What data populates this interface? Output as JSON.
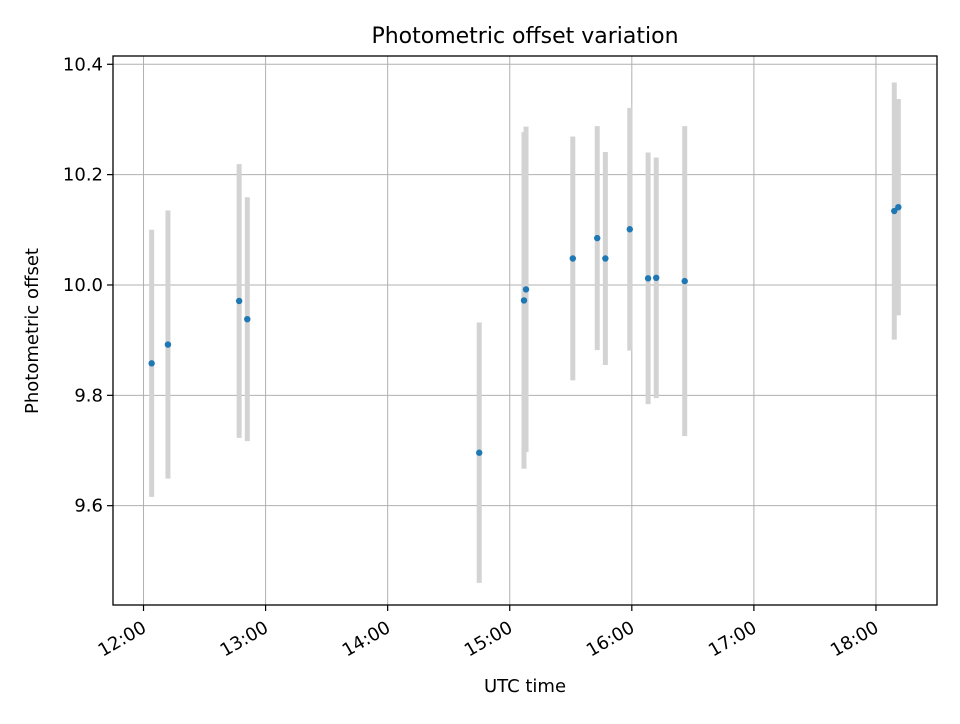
{
  "chart_data": {
    "type": "scatter",
    "title": "Photometric offset variation",
    "xlabel": "UTC time",
    "ylabel": "Photometric offset",
    "x_ticks": [
      "12:00",
      "13:00",
      "14:00",
      "15:00",
      "16:00",
      "17:00",
      "18:00"
    ],
    "x_tick_hours": [
      12,
      13,
      14,
      15,
      16,
      17,
      18
    ],
    "y_ticks": [
      "9.6",
      "9.8",
      "10.0",
      "10.2",
      "10.4"
    ],
    "y_tick_values": [
      9.6,
      9.8,
      10.0,
      10.2,
      10.4
    ],
    "xlim_hours": [
      11.75,
      18.5
    ],
    "ylim": [
      9.42,
      10.415
    ],
    "grid": true,
    "marker_color": "#1f77b4",
    "errorbar_color": "#d3d3d3",
    "points": [
      {
        "time": "12:04",
        "y": 9.858,
        "err": 0.242
      },
      {
        "time": "12:12",
        "y": 9.892,
        "err": 0.243
      },
      {
        "time": "12:47",
        "y": 9.971,
        "err": 0.248
      },
      {
        "time": "12:51",
        "y": 9.938,
        "err": 0.221
      },
      {
        "time": "14:45",
        "y": 9.696,
        "err": 0.236
      },
      {
        "time": "15:07",
        "y": 9.972,
        "err": 0.305
      },
      {
        "time": "15:08",
        "y": 9.992,
        "err": 0.295
      },
      {
        "time": "15:31",
        "y": 10.048,
        "err": 0.221
      },
      {
        "time": "15:43",
        "y": 10.085,
        "err": 0.203
      },
      {
        "time": "15:47",
        "y": 10.048,
        "err": 0.193
      },
      {
        "time": "15:59",
        "y": 10.101,
        "err": 0.22
      },
      {
        "time": "16:08",
        "y": 10.012,
        "err": 0.228
      },
      {
        "time": "16:12",
        "y": 10.013,
        "err": 0.218
      },
      {
        "time": "16:26",
        "y": 10.007,
        "err": 0.281
      },
      {
        "time": "18:09",
        "y": 10.134,
        "err": 0.233
      },
      {
        "time": "18:11",
        "y": 10.141,
        "err": 0.196
      }
    ]
  }
}
